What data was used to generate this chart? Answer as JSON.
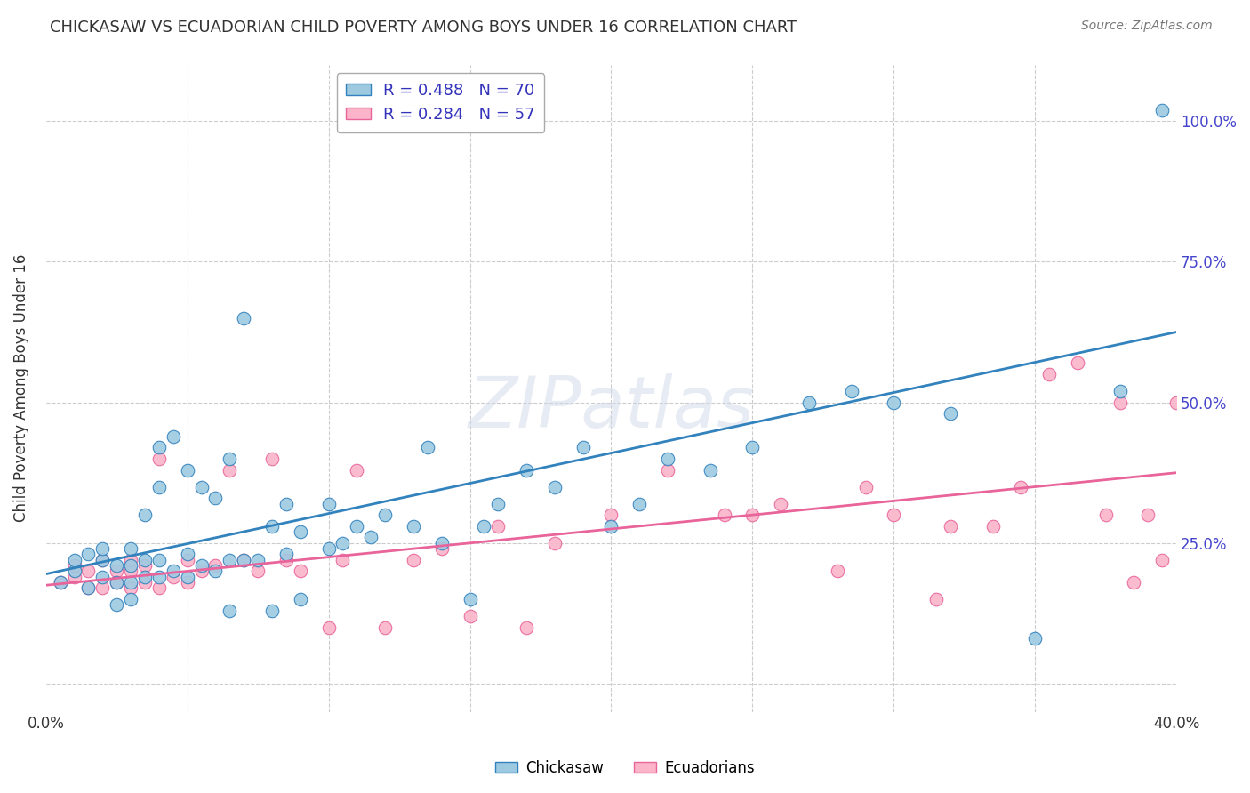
{
  "title": "CHICKASAW VS ECUADORIAN CHILD POVERTY AMONG BOYS UNDER 16 CORRELATION CHART",
  "source": "Source: ZipAtlas.com",
  "ylabel": "Child Poverty Among Boys Under 16",
  "xlim": [
    0.0,
    0.4
  ],
  "ylim": [
    -0.05,
    1.1
  ],
  "xticks": [
    0.0,
    0.05,
    0.1,
    0.15,
    0.2,
    0.25,
    0.3,
    0.35,
    0.4
  ],
  "xticklabels": [
    "0.0%",
    "",
    "",
    "",
    "",
    "",
    "",
    "",
    "40.0%"
  ],
  "yticks_right": [
    0.0,
    0.25,
    0.5,
    0.75,
    1.0
  ],
  "yticklabels_right": [
    "",
    "25.0%",
    "50.0%",
    "75.0%",
    "100.0%"
  ],
  "watermark": "ZIPatlas",
  "legend1_label": "R = 0.488   N = 70",
  "legend2_label": "R = 0.284   N = 57",
  "bottom_legend1": "Chickasaw",
  "bottom_legend2": "Ecuadorians",
  "blue_color": "#9ecae1",
  "pink_color": "#fbb4c9",
  "blue_edge_color": "#3182bd",
  "pink_edge_color": "#e8649a",
  "blue_line_color": "#3182bd",
  "pink_line_color": "#e8649a",
  "blue_line_y0": 0.195,
  "blue_line_y1": 0.625,
  "pink_line_y0": 0.175,
  "pink_line_y1": 0.375,
  "blue_scatter_x": [
    0.005,
    0.01,
    0.01,
    0.015,
    0.015,
    0.02,
    0.02,
    0.02,
    0.025,
    0.025,
    0.025,
    0.03,
    0.03,
    0.03,
    0.03,
    0.035,
    0.035,
    0.035,
    0.04,
    0.04,
    0.04,
    0.04,
    0.045,
    0.045,
    0.05,
    0.05,
    0.05,
    0.055,
    0.055,
    0.06,
    0.06,
    0.065,
    0.065,
    0.065,
    0.07,
    0.07,
    0.075,
    0.08,
    0.08,
    0.085,
    0.085,
    0.09,
    0.09,
    0.1,
    0.1,
    0.105,
    0.11,
    0.115,
    0.12,
    0.13,
    0.135,
    0.14,
    0.15,
    0.155,
    0.16,
    0.17,
    0.18,
    0.19,
    0.2,
    0.21,
    0.22,
    0.235,
    0.25,
    0.27,
    0.285,
    0.3,
    0.32,
    0.35,
    0.38,
    0.395
  ],
  "blue_scatter_y": [
    0.18,
    0.2,
    0.22,
    0.17,
    0.23,
    0.19,
    0.22,
    0.24,
    0.18,
    0.21,
    0.14,
    0.18,
    0.21,
    0.24,
    0.15,
    0.19,
    0.22,
    0.3,
    0.19,
    0.22,
    0.35,
    0.42,
    0.2,
    0.44,
    0.19,
    0.23,
    0.38,
    0.21,
    0.35,
    0.2,
    0.33,
    0.22,
    0.4,
    0.13,
    0.22,
    0.65,
    0.22,
    0.13,
    0.28,
    0.23,
    0.32,
    0.15,
    0.27,
    0.24,
    0.32,
    0.25,
    0.28,
    0.26,
    0.3,
    0.28,
    0.42,
    0.25,
    0.15,
    0.28,
    0.32,
    0.38,
    0.35,
    0.42,
    0.28,
    0.32,
    0.4,
    0.38,
    0.42,
    0.5,
    0.52,
    0.5,
    0.48,
    0.08,
    0.52,
    1.02
  ],
  "pink_scatter_x": [
    0.005,
    0.01,
    0.01,
    0.015,
    0.015,
    0.02,
    0.02,
    0.025,
    0.025,
    0.03,
    0.03,
    0.03,
    0.035,
    0.035,
    0.04,
    0.04,
    0.045,
    0.05,
    0.05,
    0.055,
    0.06,
    0.065,
    0.07,
    0.075,
    0.08,
    0.085,
    0.09,
    0.1,
    0.105,
    0.11,
    0.12,
    0.13,
    0.14,
    0.15,
    0.16,
    0.17,
    0.18,
    0.2,
    0.22,
    0.24,
    0.25,
    0.26,
    0.28,
    0.29,
    0.3,
    0.315,
    0.32,
    0.335,
    0.345,
    0.355,
    0.365,
    0.375,
    0.38,
    0.385,
    0.39,
    0.395,
    0.4
  ],
  "pink_scatter_y": [
    0.18,
    0.19,
    0.21,
    0.17,
    0.2,
    0.17,
    0.22,
    0.18,
    0.2,
    0.17,
    0.2,
    0.22,
    0.18,
    0.21,
    0.17,
    0.4,
    0.19,
    0.18,
    0.22,
    0.2,
    0.21,
    0.38,
    0.22,
    0.2,
    0.4,
    0.22,
    0.2,
    0.1,
    0.22,
    0.38,
    0.1,
    0.22,
    0.24,
    0.12,
    0.28,
    0.1,
    0.25,
    0.3,
    0.38,
    0.3,
    0.3,
    0.32,
    0.2,
    0.35,
    0.3,
    0.15,
    0.28,
    0.28,
    0.35,
    0.55,
    0.57,
    0.3,
    0.5,
    0.18,
    0.3,
    0.22,
    0.5
  ],
  "background_color": "#ffffff",
  "grid_color": "#cccccc",
  "label_color": "#4444cc",
  "title_color": "#333333",
  "legend_text_color": "#3333bb"
}
